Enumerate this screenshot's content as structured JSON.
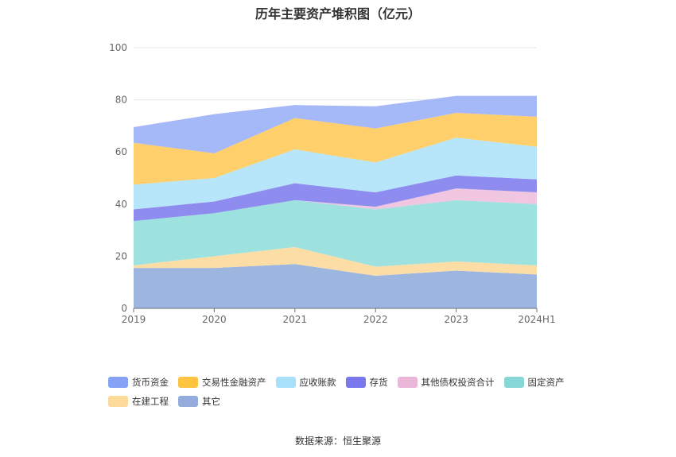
{
  "chart_title": "历年主要资产堆积图（亿元）",
  "source_text": "数据来源：恒生聚源",
  "chart_data": {
    "type": "area",
    "stacked": true,
    "title": "历年主要资产堆积图（亿元）",
    "categories": [
      "2019",
      "2020",
      "2021",
      "2022",
      "2023",
      "2024H1"
    ],
    "ylim": [
      0,
      100
    ],
    "yticks": [
      0,
      20,
      40,
      60,
      80,
      100
    ],
    "grid": true,
    "legend_position": "bottom",
    "series": [
      {
        "name": "其它",
        "color": "#9db6e0",
        "values": [
          15.5,
          15.5,
          17.0,
          12.5,
          14.5,
          13.0
        ]
      },
      {
        "name": "在建工程",
        "color": "#fddda6",
        "values": [
          1.0,
          4.5,
          6.5,
          3.5,
          3.5,
          3.5
        ]
      },
      {
        "name": "固定资产",
        "color": "#9ee2e0",
        "values": [
          17.0,
          16.5,
          18.0,
          22.0,
          23.5,
          23.5
        ]
      },
      {
        "name": "其他债权投资合计",
        "color": "#f0c6e0",
        "values": [
          0,
          0,
          0,
          1.0,
          4.5,
          4.5
        ]
      },
      {
        "name": "存货",
        "color": "#8f8cf0",
        "values": [
          4.5,
          4.5,
          6.5,
          5.5,
          5.0,
          5.0
        ]
      },
      {
        "name": "应收账款",
        "color": "#b7e6fb",
        "values": [
          9.5,
          9.0,
          13.0,
          11.5,
          14.5,
          12.5
        ]
      },
      {
        "name": "交易性金融资产",
        "color": "#fecf6a",
        "values": [
          16.0,
          9.5,
          12.0,
          13.0,
          9.5,
          11.5
        ]
      },
      {
        "name": "货币资金",
        "color": "#a5b8f7",
        "values": [
          6.0,
          15.0,
          5.0,
          8.5,
          6.5,
          8.0
        ]
      }
    ]
  },
  "legend": [
    {
      "label": "货币资金",
      "color": "#86a2f5"
    },
    {
      "label": "交易性金融资产",
      "color": "#fdc441"
    },
    {
      "label": "应收账款",
      "color": "#a8e0fa"
    },
    {
      "label": "存货",
      "color": "#7b78ee"
    },
    {
      "label": "其他债权投资合计",
      "color": "#ebb7d8"
    },
    {
      "label": "固定资产",
      "color": "#85d8d6"
    },
    {
      "label": "在建工程",
      "color": "#fdd99a"
    },
    {
      "label": "其它",
      "color": "#93acdb"
    }
  ]
}
